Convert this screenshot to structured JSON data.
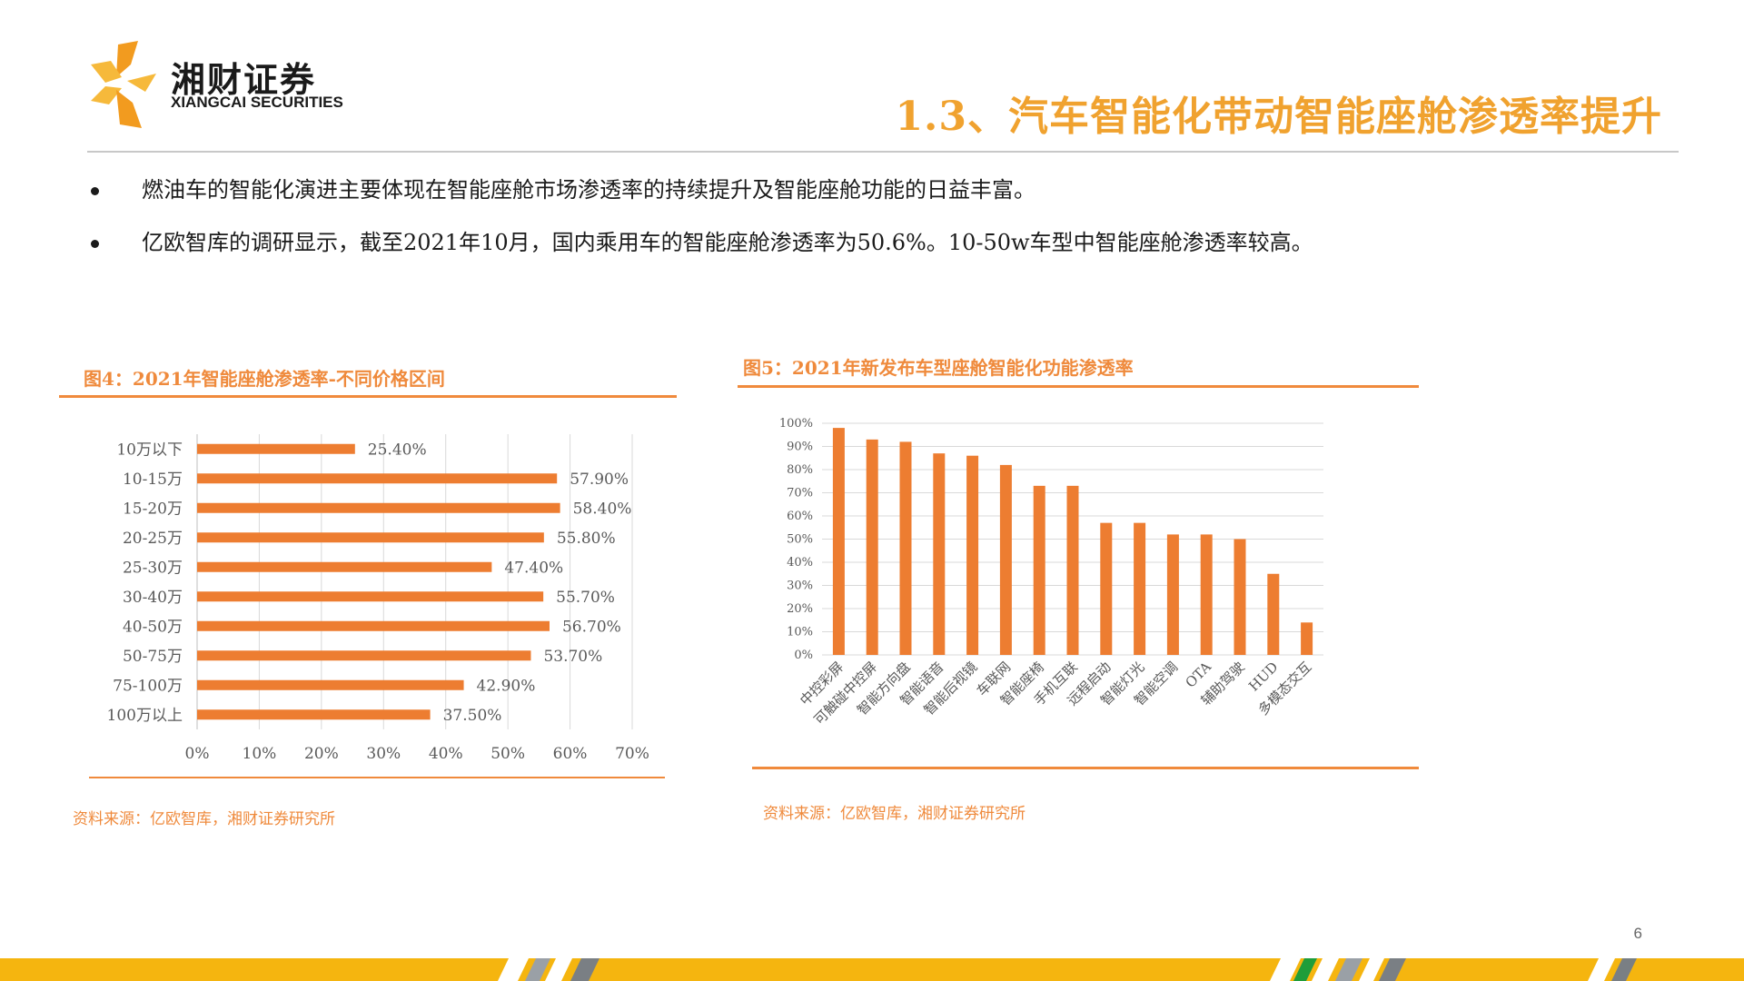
{
  "header": {
    "logo_cn": "湘财证券",
    "logo_en": "XIANGCAI SECURITIES",
    "title": "1.3、汽车智能化带动智能座舱渗透率提升"
  },
  "bullets": [
    "燃油车的智能化演进主要体现在智能座舱市场渗透率的持续提升及智能座舱功能的日益丰富。",
    "亿欧智库的调研显示，截至2021年10月，国内乘用车的智能座舱渗透率为50.6%。10-50w车型中智能座舱渗透率较高。"
  ],
  "figures": [
    {
      "title": "图4：2021年智能座舱渗透率-不同价格区间",
      "source": "资料来源：亿欧智库，湘财证券研究所"
    },
    {
      "title": "图5：2021年新发布车型座舱智能化功能渗透率",
      "source": "资料来源：亿欧智库，湘财证券研究所"
    }
  ],
  "chart_data": [
    {
      "type": "bar",
      "orientation": "horizontal",
      "categories": [
        "10万以下",
        "10-15万",
        "15-20万",
        "20-25万",
        "25-30万",
        "30-40万",
        "40-50万",
        "50-75万",
        "75-100万",
        "100万以上"
      ],
      "values": [
        25.4,
        57.9,
        58.4,
        55.8,
        47.4,
        55.7,
        56.7,
        53.7,
        42.9,
        37.5
      ],
      "value_labels": [
        "25.40%",
        "57.90%",
        "58.40%",
        "55.80%",
        "47.40%",
        "55.70%",
        "56.70%",
        "53.70%",
        "42.90%",
        "37.50%"
      ],
      "x_ticks": [
        "0%",
        "10%",
        "20%",
        "30%",
        "40%",
        "50%",
        "60%",
        "70%"
      ],
      "xlim": [
        0,
        70
      ],
      "grid": true,
      "color": "#ed7d31"
    },
    {
      "type": "bar",
      "orientation": "vertical",
      "categories": [
        "中控彩屏",
        "可触碰中控屏",
        "智能方向盘",
        "智能语音",
        "智能后视镜",
        "车联网",
        "智能座椅",
        "手机互联",
        "远程启动",
        "智能灯光",
        "智能空调",
        "OTA",
        "辅助驾驶",
        "HUD",
        "多模态交互"
      ],
      "values": [
        98,
        93,
        92,
        87,
        86,
        82,
        73,
        73,
        57,
        57,
        52,
        52,
        50,
        35,
        14
      ],
      "y_ticks": [
        "0%",
        "10%",
        "20%",
        "30%",
        "40%",
        "50%",
        "60%",
        "70%",
        "80%",
        "90%",
        "100%"
      ],
      "ylim": [
        0,
        100
      ],
      "grid": true,
      "color": "#ed7d31"
    }
  ],
  "page_number": "6",
  "colors": {
    "accent": "#f0a22f",
    "bar": "#ed7d31",
    "rule": "#f08a3c"
  }
}
